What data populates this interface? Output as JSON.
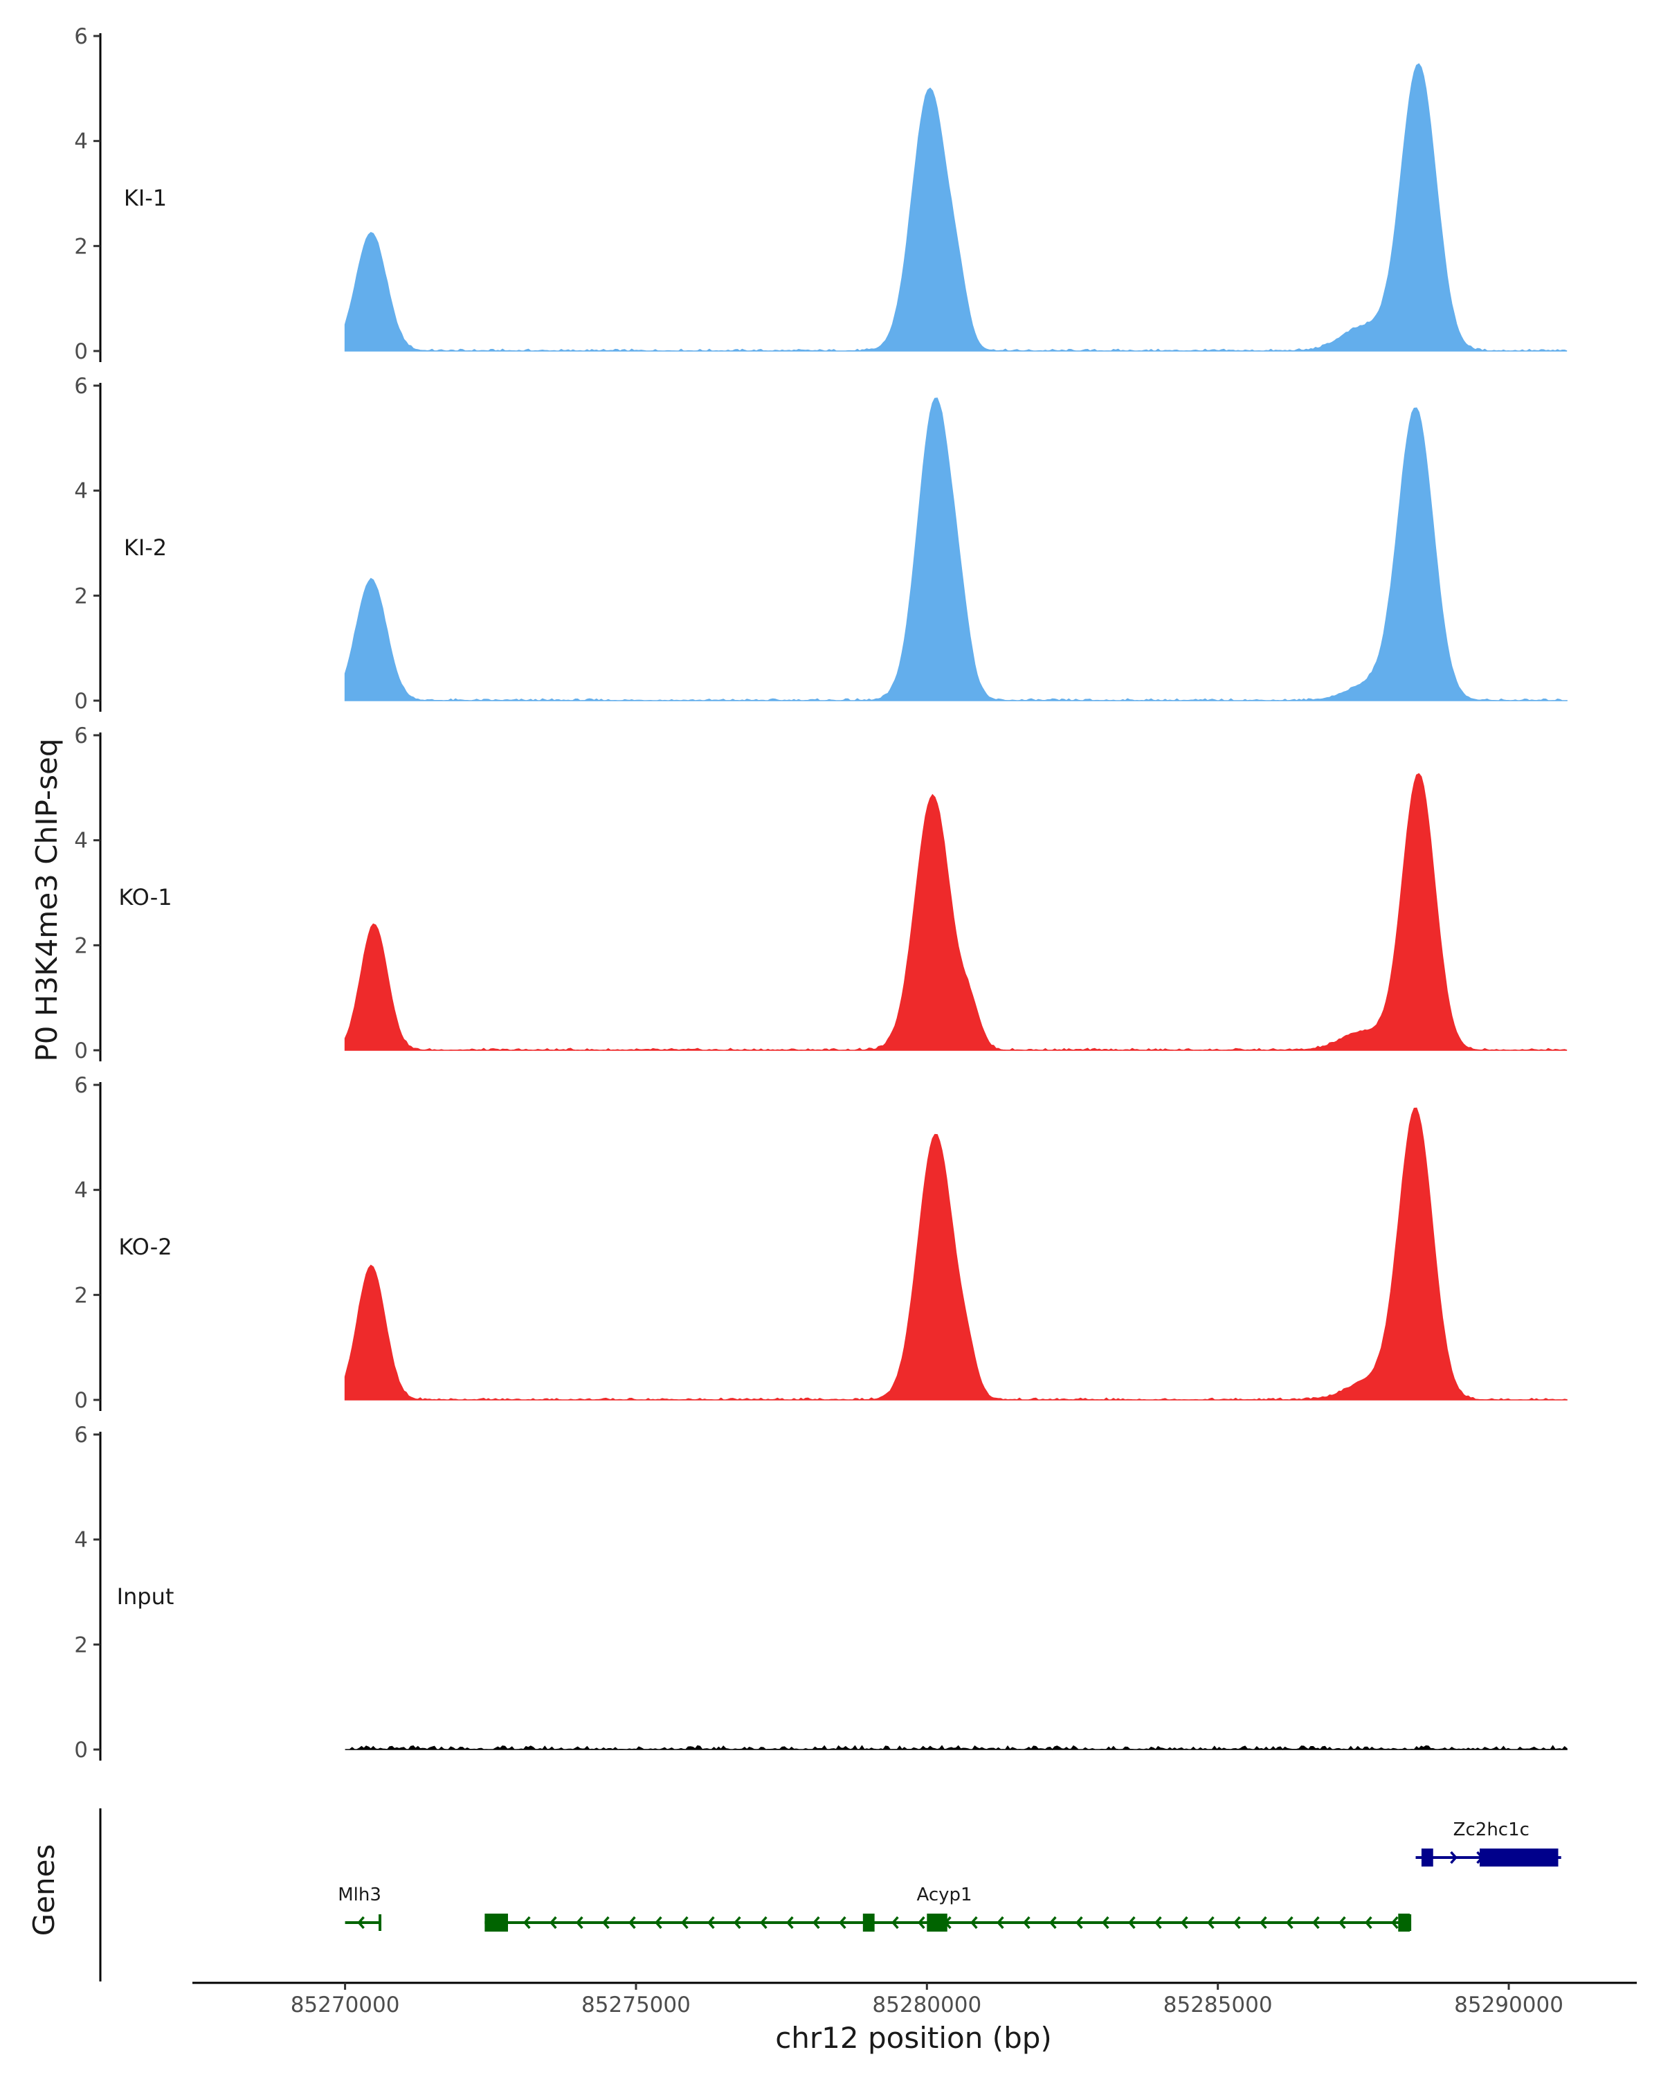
{
  "chart_data": {
    "type": "area",
    "title": "",
    "ylabel": "P0 H3K4me3 ChIP-seq",
    "genes_label": "Genes",
    "xlabel": "chr12 position (bp)",
    "xlim": [
      85267400,
      85292200
    ],
    "x_ticks": [
      85270000,
      85275000,
      85280000,
      85285000,
      85290000
    ],
    "x_tick_labels": [
      "85270000",
      "85275000",
      "85280000",
      "85285000",
      "85290000"
    ],
    "ylim": [
      0,
      6
    ],
    "y_ticks": [
      0,
      2,
      4,
      6
    ],
    "y_tick_labels": [
      "0",
      "2",
      "4",
      "6"
    ],
    "data_range": [
      85270000,
      85291000
    ],
    "grid": false,
    "legend": "none",
    "series": [
      {
        "name": "KI-1",
        "color": "#63aeec",
        "peaks": [
          [
            85270450,
            2.25,
            260
          ],
          [
            85280050,
            5.0,
            300
          ],
          [
            85288450,
            5.45,
            300
          ]
        ],
        "shoulders": [
          [
            85280550,
            0.7,
            160
          ],
          [
            85287500,
            0.45,
            380
          ]
        ]
      },
      {
        "name": "KI-2",
        "color": "#63aeec",
        "peaks": [
          [
            85270450,
            2.3,
            260
          ],
          [
            85280150,
            5.75,
            300
          ],
          [
            85288400,
            5.55,
            300
          ]
        ],
        "shoulders": [
          [
            85280600,
            0.6,
            160
          ],
          [
            85287600,
            0.3,
            380
          ]
        ]
      },
      {
        "name": "KO-1",
        "color": "#ee2a2b",
        "peaks": [
          [
            85270500,
            2.4,
            230
          ],
          [
            85280100,
            4.85,
            300
          ],
          [
            85288450,
            5.25,
            280
          ]
        ],
        "shoulders": [
          [
            85280750,
            0.7,
            170
          ],
          [
            85287500,
            0.35,
            380
          ]
        ]
      },
      {
        "name": "KO-2",
        "color": "#ee2a2b",
        "peaks": [
          [
            85270450,
            2.55,
            240
          ],
          [
            85280150,
            5.05,
            300
          ],
          [
            85288400,
            5.5,
            290
          ]
        ],
        "shoulders": [
          [
            85280700,
            0.55,
            160
          ],
          [
            85287600,
            0.35,
            380
          ]
        ]
      },
      {
        "name": "Input",
        "color": "#000000",
        "peaks": [],
        "shoulders": [],
        "noise": 0.07
      }
    ],
    "genes": [
      {
        "name": "Mlh3",
        "color": "#006400",
        "strand": "-",
        "start": 85270000,
        "end": 85270600,
        "exons": [],
        "label_x": 85270250,
        "row": "lower"
      },
      {
        "name": "Acyp1",
        "color": "#006400",
        "strand": "-",
        "start": 85272400,
        "end": 85288300,
        "exons": [
          [
            85272400,
            85272800
          ],
          [
            85278900,
            85279100
          ],
          [
            85280000,
            85280350
          ],
          [
            85288100,
            85288300
          ]
        ],
        "label_x": 85280300,
        "row": "lower"
      },
      {
        "name": "Zc2hc1c",
        "color": "#00008b",
        "strand": "+",
        "start": 85288400,
        "end": 85290900,
        "exons": [
          [
            85288500,
            85288700
          ],
          [
            85289500,
            85290850
          ]
        ],
        "label_x": 85289700,
        "row": "upper"
      }
    ]
  }
}
